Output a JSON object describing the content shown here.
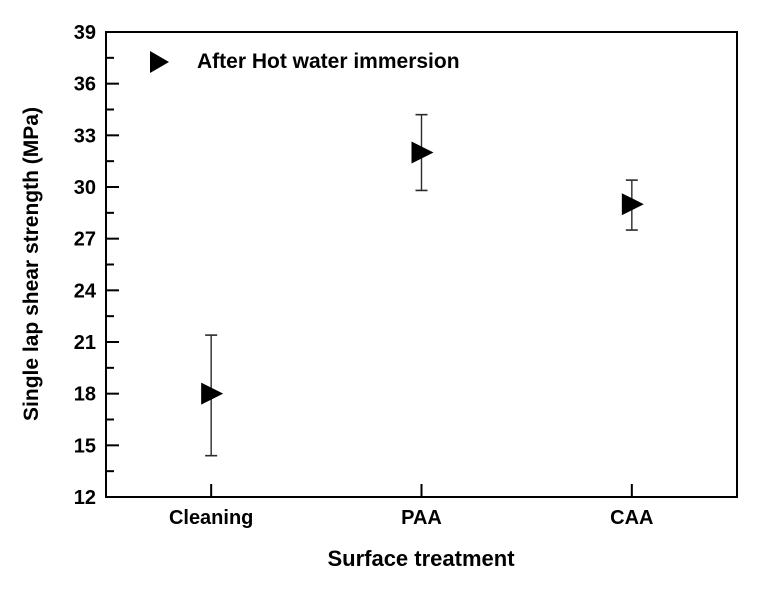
{
  "figure": {
    "background_color": "#ffffff",
    "axis_color": "#000000",
    "text_color": "#000000",
    "marker_color": "#000000",
    "error_bar_color": "#2b2b2b"
  },
  "chart_data": {
    "type": "scatter",
    "title": "",
    "xlabel": "Surface treatment",
    "ylabel": "Single lap shear strength (MPa)",
    "legend": {
      "label": "After Hot water immersion",
      "marker": "right-pointing-triangle",
      "position": "top-left-inside"
    },
    "categories": [
      "Cleaning",
      "PAA",
      "CAA"
    ],
    "series": [
      {
        "name": "After Hot water immersion",
        "marker": "right-pointing-triangle",
        "color": "#000000",
        "points": [
          {
            "category": "Cleaning",
            "y": 18.0,
            "error_upper": 21.4,
            "error_lower": 14.4
          },
          {
            "category": "PAA",
            "y": 32.0,
            "error_upper": 34.2,
            "error_lower": 29.8
          },
          {
            "category": "CAA",
            "y": 29.0,
            "error_upper": 30.4,
            "error_lower": 27.5
          }
        ]
      }
    ],
    "ylim": [
      12,
      39
    ],
    "yticks": [
      12,
      15,
      18,
      21,
      24,
      27,
      30,
      33,
      36,
      39
    ],
    "y_minor_tick_step": 1.5,
    "xticks_at_categories": true,
    "grid": false,
    "legend_position": "top-left-inside"
  }
}
